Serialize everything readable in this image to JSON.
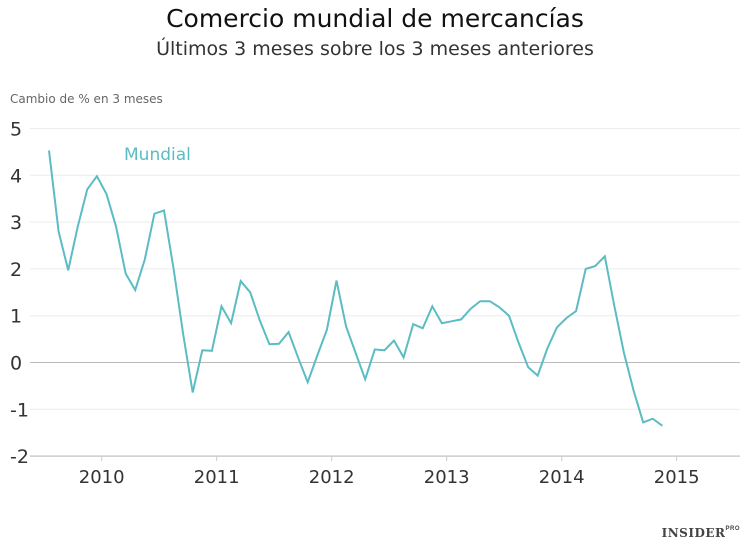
{
  "chart_data": {
    "type": "line",
    "title": "Comercio mundial de mercancías",
    "subtitle": "Últimos 3 meses sobre los 3 meses anteriores",
    "ylabel": "Cambio de % en 3 meses",
    "xlabel": "",
    "ylim": [
      -2,
      5
    ],
    "yticks": [
      "5",
      "4",
      "3",
      "2",
      "1",
      "0",
      "-1",
      "-2"
    ],
    "xticks": [
      "2010",
      "2011",
      "2012",
      "2013",
      "2014",
      "2015"
    ],
    "grid": true,
    "series_color": "#5bbcc4",
    "series": [
      {
        "name": "Mundial",
        "x": [
          "2009-07",
          "2009-08",
          "2009-09",
          "2009-10",
          "2009-11",
          "2009-12",
          "2010-01",
          "2010-02",
          "2010-03",
          "2010-04",
          "2010-05",
          "2010-06",
          "2010-07",
          "2010-08",
          "2010-09",
          "2010-10",
          "2010-11",
          "2010-12",
          "2011-01",
          "2011-02",
          "2011-03",
          "2011-04",
          "2011-05",
          "2011-06",
          "2011-07",
          "2011-08",
          "2011-09",
          "2011-10",
          "2011-11",
          "2011-12",
          "2012-01",
          "2012-02",
          "2012-03",
          "2012-04",
          "2012-05",
          "2012-06",
          "2012-07",
          "2012-08",
          "2012-09",
          "2012-10",
          "2012-11",
          "2012-12",
          "2013-01",
          "2013-02",
          "2013-03",
          "2013-04",
          "2013-05",
          "2013-06",
          "2013-07",
          "2013-08",
          "2013-09",
          "2013-10",
          "2013-11",
          "2013-12",
          "2014-01",
          "2014-02",
          "2014-03",
          "2014-04",
          "2014-05",
          "2014-06",
          "2014-07",
          "2014-08",
          "2014-09",
          "2014-10",
          "2014-11"
        ],
        "values": [
          4.53,
          2.8,
          1.97,
          2.9,
          3.7,
          3.98,
          3.6,
          2.9,
          1.9,
          1.55,
          2.2,
          3.18,
          3.25,
          2.0,
          0.6,
          -0.64,
          0.26,
          0.25,
          1.2,
          0.84,
          1.74,
          1.5,
          0.9,
          0.39,
          0.4,
          0.65,
          0.1,
          -0.42,
          0.15,
          0.7,
          1.75,
          0.77,
          0.2,
          -0.36,
          0.28,
          0.26,
          0.47,
          0.11,
          0.82,
          0.73,
          1.2,
          0.84,
          0.88,
          0.92,
          1.15,
          1.31,
          1.31,
          1.18,
          1.0,
          0.42,
          -0.1,
          -0.28,
          0.3,
          0.75,
          0.95,
          1.1,
          2.0,
          2.06,
          2.27,
          1.2,
          0.2,
          -0.6,
          -1.28,
          -1.2,
          -1.35
        ]
      }
    ]
  },
  "branding": {
    "logo": "INSIDER PRO"
  }
}
